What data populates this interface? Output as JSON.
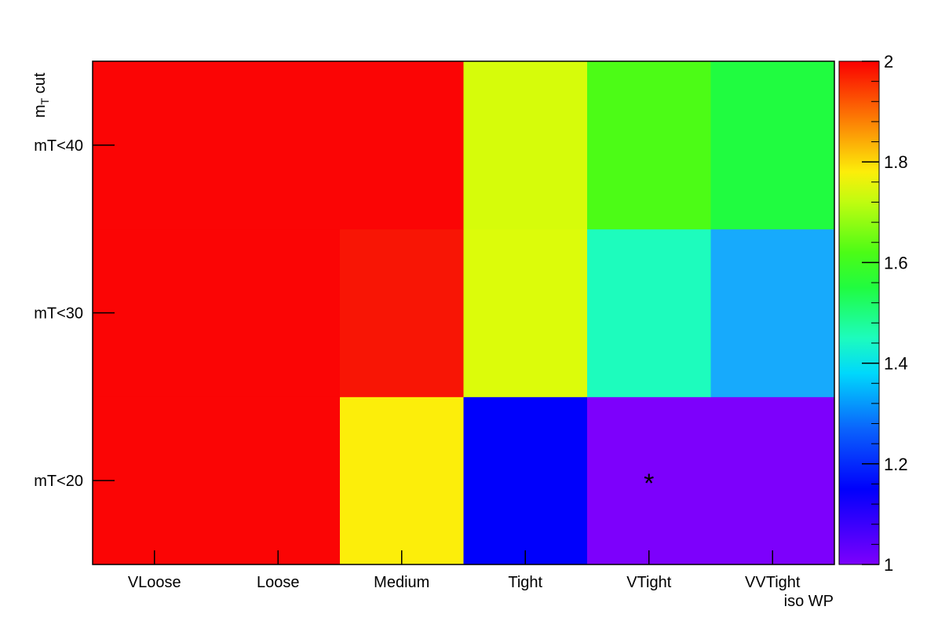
{
  "chart_data": {
    "type": "heatmap",
    "x_categories": [
      "VLoose",
      "Loose",
      "Medium",
      "Tight",
      "VTight",
      "VVTight"
    ],
    "y_categories": [
      "mT<20",
      "mT<30",
      "mT<40"
    ],
    "xlabel": "iso WP",
    "ylabel_main": "m",
    "ylabel_sub": "T",
    "ylabel_rest": " cut",
    "zlim": [
      1,
      2
    ],
    "colorbar_ticks": [
      "1",
      "1.2",
      "1.4",
      "1.6",
      "1.8",
      "2"
    ],
    "colorbar_tick_values": [
      1,
      1.2,
      1.4,
      1.6,
      1.8,
      2
    ],
    "values": [
      [
        2.0,
        2.0,
        1.78,
        1.15,
        1.02,
        1.02
      ],
      [
        2.0,
        2.0,
        1.98,
        1.74,
        1.41,
        1.3
      ],
      [
        2.0,
        2.0,
        2.0,
        1.73,
        1.6,
        1.58
      ]
    ],
    "cell_colors": [
      [
        "#fb0505",
        "#fb0505",
        "#fcee0a",
        "#0000fc",
        "#7d00fc",
        "#7d00fc"
      ],
      [
        "#fb0505",
        "#fb0505",
        "#f81505",
        "#dcfc0a",
        "#1dfcbd",
        "#17aafc"
      ],
      [
        "#fb0505",
        "#fb0505",
        "#fb0505",
        "#d6fc0a",
        "#4cfc16",
        "#20fc40"
      ]
    ],
    "marker": {
      "x_category": "VTight",
      "y_category": "mT<20",
      "symbol": "*"
    },
    "grid": false
  }
}
